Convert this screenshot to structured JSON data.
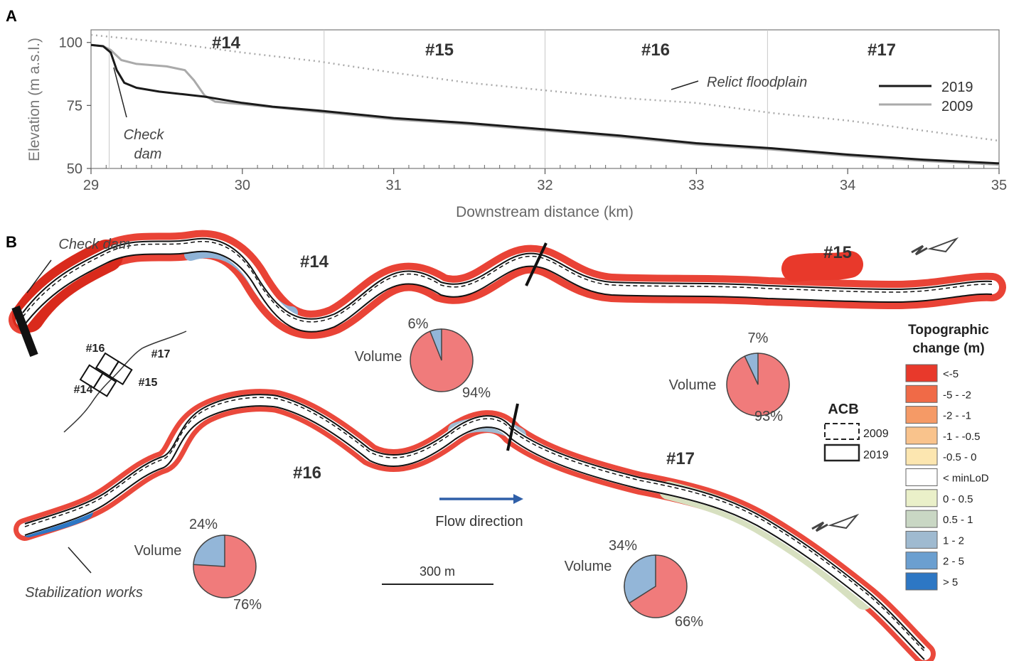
{
  "panel_a": {
    "letter": "A",
    "ylabel": "Elevation (m a.s.l.)",
    "xlabel": "Downstream distance (km)",
    "reaches": [
      "#14",
      "#15",
      "#16",
      "#17"
    ],
    "annotation_check_dam_line1": "Check",
    "annotation_check_dam_line2": "dam",
    "annotation_floodplain": "Relict floodplain",
    "legend": [
      "2019",
      "2009"
    ]
  },
  "chart_data": {
    "type": "line",
    "xlabel": "Downstream distance (km)",
    "ylabel": "Elevation (m a.s.l.)",
    "xlim": [
      29,
      35
    ],
    "ylim": [
      50,
      105
    ],
    "xticks": [
      29,
      30,
      31,
      32,
      33,
      34,
      35
    ],
    "yticks": [
      50,
      75,
      100
    ],
    "reach_boundaries_km": [
      29.12,
      30.54,
      32.0,
      33.47
    ],
    "grid": false,
    "legend_position": "top-right",
    "series": [
      {
        "name": "2019",
        "color": "#1a1a1a",
        "style": "solid",
        "x": [
          29.0,
          29.08,
          29.13,
          29.17,
          29.22,
          29.3,
          29.45,
          29.6,
          29.75,
          29.9,
          30.0,
          30.2,
          30.5,
          31.0,
          31.5,
          32.0,
          32.5,
          33.0,
          33.5,
          34.0,
          34.5,
          35.0
        ],
        "y": [
          99,
          98.5,
          96,
          89,
          84,
          82,
          80.5,
          79.5,
          78.5,
          77,
          76,
          74.5,
          73,
          70,
          68,
          65.5,
          63,
          60,
          58,
          55.5,
          53.5,
          52
        ]
      },
      {
        "name": "2009",
        "color": "#aaaaaa",
        "style": "solid",
        "x": [
          29.0,
          29.08,
          29.13,
          29.2,
          29.3,
          29.5,
          29.62,
          29.68,
          29.75,
          29.82,
          29.9,
          30.0,
          30.5,
          31.0,
          31.5,
          32.0,
          32.5,
          33.0,
          33.5,
          34.0,
          34.5,
          35.0
        ],
        "y": [
          99,
          98.5,
          97,
          93,
          91.5,
          90.5,
          89,
          85,
          79,
          76.5,
          76,
          75.5,
          72.5,
          69.5,
          67.5,
          65,
          62.5,
          59.5,
          57.5,
          55,
          53,
          51.5
        ]
      },
      {
        "name": "Relict floodplain",
        "color": "#aaaaaa",
        "style": "dotted",
        "x": [
          29.0,
          29.5,
          30.0,
          30.5,
          31.0,
          31.5,
          32.0,
          32.5,
          33.0,
          33.5,
          34.0,
          34.5,
          35.0
        ],
        "y": [
          103,
          100,
          96,
          92.5,
          88,
          84,
          81,
          78,
          76,
          72,
          69,
          65,
          61
        ]
      }
    ]
  },
  "panel_b": {
    "letter": "B",
    "check_dam_label": "Check dam",
    "stabilization_label": "Stabilization works",
    "flow_direction_label": "Flow direction",
    "scale_bar_label": "300 m",
    "reach_labels": [
      "#14",
      "#15",
      "#16",
      "#17"
    ],
    "inset_labels": [
      "#16",
      "#17",
      "#14",
      "#15"
    ],
    "pies": [
      {
        "reach": "#14",
        "label": "Volume",
        "top_pct": "6%",
        "bottom_pct": "94%",
        "blue_fraction": 0.06
      },
      {
        "reach": "#15",
        "label": "Volume",
        "top_pct": "7%",
        "bottom_pct": "93%",
        "blue_fraction": 0.07
      },
      {
        "reach": "#16",
        "label": "Volume",
        "top_pct": "24%",
        "bottom_pct": "76%",
        "blue_fraction": 0.24
      },
      {
        "reach": "#17",
        "label": "Volume",
        "top_pct": "34%",
        "bottom_pct": "66%",
        "blue_fraction": 0.34
      }
    ],
    "acb_legend": {
      "title": "ACB",
      "items": [
        "2009",
        "2019"
      ]
    },
    "topo_legend": {
      "title_line1": "Topographic",
      "title_line2": "change (m)",
      "items": [
        {
          "label": "<-5",
          "color": "#e8392b"
        },
        {
          "label": "-5 - -2",
          "color": "#f06a47"
        },
        {
          "label": "-2 - -1",
          "color": "#f59a66"
        },
        {
          "label": "-1 - -0.5",
          "color": "#f9c38c"
        },
        {
          "label": "-0.5 - 0",
          "color": "#fce6b0"
        },
        {
          "label": "< minLoD",
          "color": "#ffffff"
        },
        {
          "label": "0 - 0.5",
          "color": "#eaf0c9"
        },
        {
          "label": "0.5 - 1",
          "color": "#c9d7c4"
        },
        {
          "label": "1 - 2",
          "color": "#9fbad0"
        },
        {
          "label": "2 - 5",
          "color": "#6b9fd0"
        },
        {
          "label": "> 5",
          "color": "#2d77c4"
        }
      ]
    },
    "colors": {
      "erosion": "#e8392b",
      "deposition": "#8fb3d6",
      "pie_red": "#f07b7b",
      "pie_blue": "#93b6d8",
      "arrow": "#2f5fa8"
    }
  }
}
